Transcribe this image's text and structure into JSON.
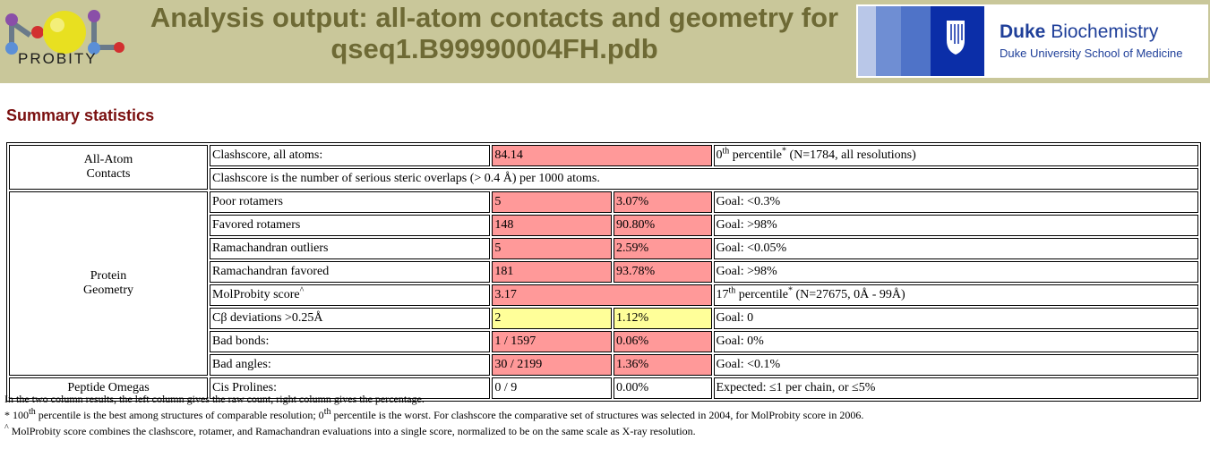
{
  "header": {
    "logo_text": "PROBITY",
    "title_line1": "Analysis output: all-atom contacts and geometry for",
    "title_line2": "qseq1.B99990004FH.pdb",
    "duke_name_bold": "Duke",
    "duke_name_rest": "Biochemistry",
    "duke_subtitle": "Duke University School of Medicine"
  },
  "section_title": "Summary statistics",
  "table": {
    "all_atom": {
      "category_line1": "All-Atom",
      "category_line2": "Contacts",
      "clash_label": "Clashscore, all atoms:",
      "clash_value": "84.14",
      "clash_pct_sup": "th",
      "clash_pct_rank": "0",
      "clash_pct_rest": " percentile",
      "clash_pct_star": "*",
      "clash_pct_detail": " (N=1784, all resolutions)",
      "clash_note": "Clashscore is the number of serious steric overlaps (> 0.4 Å) per 1000 atoms."
    },
    "protein": {
      "category_line1": "Protein",
      "category_line2": "Geometry",
      "rows": [
        {
          "label": "Poor rotamers",
          "count": "5",
          "pct": "3.07%",
          "goal": "Goal: <0.3%"
        },
        {
          "label": "Favored rotamers",
          "count": "148",
          "pct": "90.80%",
          "goal": "Goal: >98%"
        },
        {
          "label": "Ramachandran outliers",
          "count": "5",
          "pct": "2.59%",
          "goal": "Goal: <0.05%"
        },
        {
          "label": "Ramachandran favored",
          "count": "181",
          "pct": "93.78%",
          "goal": "Goal: >98%"
        }
      ],
      "molprobity": {
        "label": "MolProbity score",
        "label_sup": "^",
        "value": "3.17",
        "pct_rank": "17",
        "pct_sup": "th",
        "pct_rest": " percentile",
        "pct_star": "*",
        "pct_detail": " (N=27675, 0Å - 99Å)"
      },
      "cbeta": {
        "label": "Cβ deviations >0.25Å",
        "count": "2",
        "pct": "1.12%",
        "goal": "Goal: 0"
      },
      "bonds": {
        "label": "Bad bonds:",
        "count": "1 / 1597",
        "pct": "0.06%",
        "goal": "Goal: 0%"
      },
      "angles": {
        "label": "Bad angles:",
        "count": "30 / 2199",
        "pct": "1.36%",
        "goal": "Goal: <0.1%"
      }
    },
    "omegas": {
      "category": "Peptide Omegas",
      "label": "Cis Prolines:",
      "count": "0 / 9",
      "pct": "0.00%",
      "goal": "Expected: ≤1 per chain, or ≤5%"
    }
  },
  "notes": {
    "line1": "In the two column results, the left column gives the raw count, right column gives the percentage.",
    "line2_star": "* 100",
    "line2_sup1": "th",
    "line2_mid": " percentile is the best among structures of comparable resolution; 0",
    "line2_sup2": "th",
    "line2_end": " percentile is the worst. For clashscore the comparative set of structures was selected in 2004, for MolProbity score in 2006.",
    "line3_caret": "^",
    "line3": " MolProbity score combines the clashscore, rotamer, and Ramachandran evaluations into a single score, normalized to be on the same scale as X-ray resolution."
  },
  "colors": {
    "header_bg": "#c9c79a",
    "title": "#6e6a35",
    "section_title": "#7a0f0f",
    "bad_cell": "#ff9999",
    "warn_cell": "#ffff99",
    "duke_blue": "#1f3f99"
  }
}
